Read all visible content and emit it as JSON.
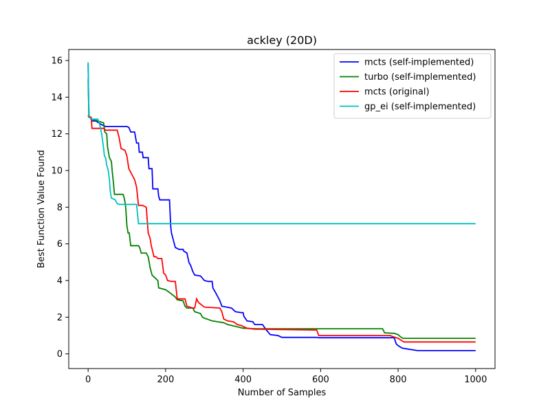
{
  "chart_data": {
    "type": "line",
    "title": "ackley (20D)",
    "xlabel": "Number of Samples",
    "ylabel": "Best Function Value Found",
    "xlim": [
      -50,
      1050
    ],
    "ylim": [
      -0.8,
      16.6
    ],
    "xticks": [
      0,
      200,
      400,
      600,
      800,
      1000
    ],
    "yticks": [
      0,
      2,
      4,
      6,
      8,
      10,
      12,
      14,
      16
    ],
    "grid": false,
    "legend_position": "top-right",
    "series": [
      {
        "name": "mcts (self-implemented)",
        "color": "#0000ff",
        "points": [
          [
            0,
            15.8
          ],
          [
            2,
            13.0
          ],
          [
            5,
            12.9
          ],
          [
            10,
            12.7
          ],
          [
            20,
            12.7
          ],
          [
            35,
            12.5
          ],
          [
            45,
            12.4
          ],
          [
            100,
            12.4
          ],
          [
            105,
            12.35
          ],
          [
            110,
            12.1
          ],
          [
            120,
            12.1
          ],
          [
            125,
            11.5
          ],
          [
            130,
            11.5
          ],
          [
            132,
            11.0
          ],
          [
            140,
            11.0
          ],
          [
            142,
            10.7
          ],
          [
            155,
            10.7
          ],
          [
            157,
            10.1
          ],
          [
            165,
            10.1
          ],
          [
            167,
            9.0
          ],
          [
            180,
            9.0
          ],
          [
            182,
            8.6
          ],
          [
            185,
            8.4
          ],
          [
            210,
            8.4
          ],
          [
            213,
            7.0
          ],
          [
            215,
            6.6
          ],
          [
            220,
            6.2
          ],
          [
            225,
            5.8
          ],
          [
            235,
            5.7
          ],
          [
            245,
            5.7
          ],
          [
            247,
            5.6
          ],
          [
            255,
            5.5
          ],
          [
            260,
            5.0
          ],
          [
            265,
            4.8
          ],
          [
            270,
            4.5
          ],
          [
            275,
            4.3
          ],
          [
            290,
            4.25
          ],
          [
            300,
            4.0
          ],
          [
            310,
            3.95
          ],
          [
            320,
            3.95
          ],
          [
            322,
            3.6
          ],
          [
            330,
            3.3
          ],
          [
            335,
            3.1
          ],
          [
            340,
            2.9
          ],
          [
            345,
            2.6
          ],
          [
            370,
            2.5
          ],
          [
            380,
            2.3
          ],
          [
            395,
            2.25
          ],
          [
            400,
            2.25
          ],
          [
            402,
            2.05
          ],
          [
            410,
            1.8
          ],
          [
            425,
            1.75
          ],
          [
            430,
            1.6
          ],
          [
            450,
            1.6
          ],
          [
            460,
            1.3
          ],
          [
            470,
            1.05
          ],
          [
            490,
            1.0
          ],
          [
            500,
            0.9
          ],
          [
            590,
            0.9
          ],
          [
            595,
            0.88
          ],
          [
            790,
            0.88
          ],
          [
            795,
            0.55
          ],
          [
            800,
            0.45
          ],
          [
            810,
            0.32
          ],
          [
            820,
            0.28
          ],
          [
            850,
            0.18
          ],
          [
            1000,
            0.18
          ]
        ]
      },
      {
        "name": "turbo (self-implemented)",
        "color": "#008000",
        "points": [
          [
            0,
            15.0
          ],
          [
            2,
            13.0
          ],
          [
            10,
            12.8
          ],
          [
            25,
            12.7
          ],
          [
            40,
            12.6
          ],
          [
            43,
            12.1
          ],
          [
            48,
            12.0
          ],
          [
            50,
            11.3
          ],
          [
            55,
            10.7
          ],
          [
            60,
            10.5
          ],
          [
            62,
            10.0
          ],
          [
            65,
            9.4
          ],
          [
            68,
            8.7
          ],
          [
            90,
            8.7
          ],
          [
            92,
            8.6
          ],
          [
            95,
            8.3
          ],
          [
            97,
            8.0
          ],
          [
            100,
            7.0
          ],
          [
            103,
            6.6
          ],
          [
            106,
            6.6
          ],
          [
            110,
            5.9
          ],
          [
            130,
            5.9
          ],
          [
            133,
            5.8
          ],
          [
            137,
            5.5
          ],
          [
            150,
            5.5
          ],
          [
            155,
            5.3
          ],
          [
            160,
            4.7
          ],
          [
            165,
            4.3
          ],
          [
            170,
            4.2
          ],
          [
            180,
            4.0
          ],
          [
            182,
            3.6
          ],
          [
            200,
            3.5
          ],
          [
            210,
            3.35
          ],
          [
            225,
            3.1
          ],
          [
            230,
            2.95
          ],
          [
            245,
            2.9
          ],
          [
            250,
            2.6
          ],
          [
            255,
            2.5
          ],
          [
            270,
            2.5
          ],
          [
            275,
            2.3
          ],
          [
            290,
            2.2
          ],
          [
            295,
            2.0
          ],
          [
            300,
            1.95
          ],
          [
            320,
            1.8
          ],
          [
            350,
            1.7
          ],
          [
            360,
            1.6
          ],
          [
            380,
            1.5
          ],
          [
            400,
            1.4
          ],
          [
            420,
            1.38
          ],
          [
            440,
            1.37
          ],
          [
            760,
            1.37
          ],
          [
            765,
            1.15
          ],
          [
            790,
            1.12
          ],
          [
            800,
            1.05
          ],
          [
            805,
            0.95
          ],
          [
            812,
            0.85
          ],
          [
            1000,
            0.85
          ]
        ]
      },
      {
        "name": "mcts (original)",
        "color": "#ff0000",
        "points": [
          [
            0,
            13.0
          ],
          [
            2,
            12.9
          ],
          [
            8,
            12.9
          ],
          [
            10,
            12.3
          ],
          [
            40,
            12.3
          ],
          [
            45,
            12.2
          ],
          [
            75,
            12.2
          ],
          [
            80,
            11.8
          ],
          [
            85,
            11.2
          ],
          [
            95,
            11.1
          ],
          [
            100,
            10.8
          ],
          [
            105,
            10.1
          ],
          [
            115,
            9.7
          ],
          [
            120,
            9.5
          ],
          [
            125,
            9.1
          ],
          [
            130,
            8.1
          ],
          [
            140,
            8.1
          ],
          [
            150,
            8.0
          ],
          [
            155,
            6.6
          ],
          [
            160,
            6.3
          ],
          [
            163,
            5.9
          ],
          [
            170,
            5.3
          ],
          [
            175,
            5.3
          ],
          [
            180,
            5.2
          ],
          [
            190,
            5.2
          ],
          [
            195,
            4.4
          ],
          [
            200,
            4.3
          ],
          [
            205,
            4.0
          ],
          [
            215,
            3.95
          ],
          [
            225,
            3.95
          ],
          [
            230,
            3.0
          ],
          [
            250,
            3.0
          ],
          [
            255,
            2.6
          ],
          [
            270,
            2.5
          ],
          [
            275,
            2.5
          ],
          [
            280,
            3.0
          ],
          [
            285,
            2.8
          ],
          [
            300,
            2.55
          ],
          [
            340,
            2.5
          ],
          [
            345,
            2.3
          ],
          [
            350,
            1.9
          ],
          [
            360,
            1.8
          ],
          [
            375,
            1.75
          ],
          [
            385,
            1.6
          ],
          [
            395,
            1.55
          ],
          [
            400,
            1.5
          ],
          [
            410,
            1.4
          ],
          [
            430,
            1.35
          ],
          [
            590,
            1.3
          ],
          [
            595,
            1.0
          ],
          [
            780,
            1.0
          ],
          [
            785,
            0.95
          ],
          [
            800,
            0.85
          ],
          [
            815,
            0.65
          ],
          [
            1000,
            0.65
          ]
        ]
      },
      {
        "name": "gp_ei (self-implemented)",
        "color": "#00bfbf",
        "points": [
          [
            0,
            15.9
          ],
          [
            1,
            14.0
          ],
          [
            3,
            12.9
          ],
          [
            10,
            12.8
          ],
          [
            25,
            12.8
          ],
          [
            30,
            12.5
          ],
          [
            35,
            12.0
          ],
          [
            40,
            11.2
          ],
          [
            42,
            10.8
          ],
          [
            45,
            10.7
          ],
          [
            48,
            10.3
          ],
          [
            52,
            10.0
          ],
          [
            55,
            9.5
          ],
          [
            57,
            8.9
          ],
          [
            60,
            8.5
          ],
          [
            70,
            8.4
          ],
          [
            75,
            8.2
          ],
          [
            80,
            8.15
          ],
          [
            125,
            8.15
          ],
          [
            130,
            7.1
          ],
          [
            1000,
            7.1
          ]
        ]
      }
    ]
  }
}
